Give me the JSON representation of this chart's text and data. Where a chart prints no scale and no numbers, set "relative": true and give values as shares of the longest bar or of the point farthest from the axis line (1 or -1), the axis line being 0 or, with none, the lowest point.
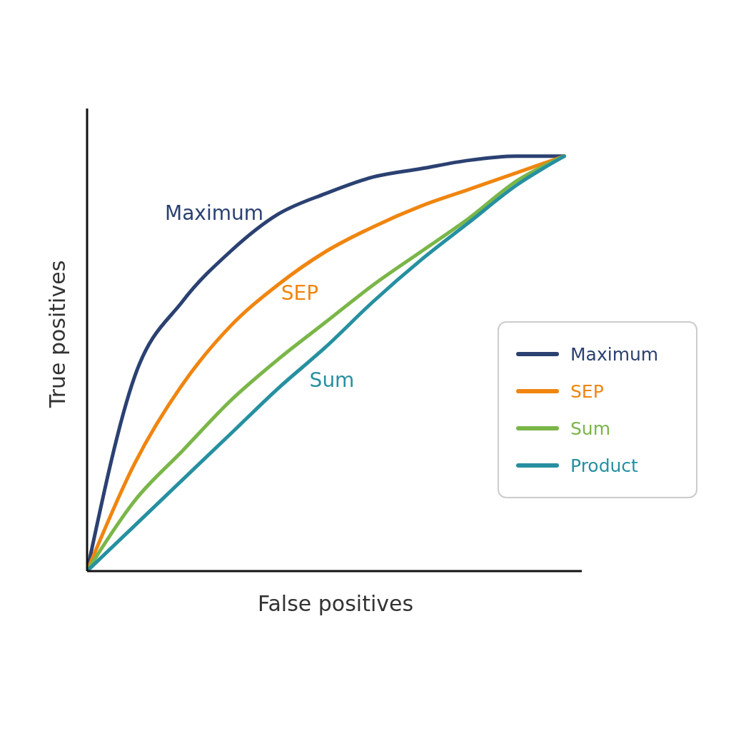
{
  "chart_data": {
    "type": "line",
    "xlabel": "False positives",
    "ylabel": "True positives",
    "relative": true,
    "categories": [
      null,
      null,
      null,
      null,
      null,
      null,
      null,
      null,
      null,
      null,
      null
    ],
    "series": [
      {
        "name": "Maximum",
        "color": "#2b4172",
        "values": [
          0,
          0.47,
          0.65,
          0.77,
          0.86,
          0.91,
          0.95,
          0.97,
          0.99,
          1,
          1
        ]
      },
      {
        "name": "SEP",
        "color": "#f0850f",
        "values": [
          0,
          0.26,
          0.45,
          0.59,
          0.69,
          0.77,
          0.83,
          0.88,
          0.92,
          0.96,
          1
        ]
      },
      {
        "name": "Sum",
        "color": "#7ab648",
        "values": [
          0,
          0.17,
          0.29,
          0.41,
          0.51,
          0.6,
          0.69,
          0.77,
          0.85,
          0.94,
          1
        ]
      },
      {
        "name": "Product",
        "color": "#2690a0",
        "values": [
          0,
          0.11,
          0.22,
          0.33,
          0.44,
          0.54,
          0.65,
          0.75,
          0.84,
          0.93,
          1
        ]
      }
    ],
    "annotations": [
      "Maximum",
      "SEP",
      "Sum"
    ],
    "legend": "right",
    "grid": false,
    "marker": "none",
    "line_style": "solid"
  }
}
